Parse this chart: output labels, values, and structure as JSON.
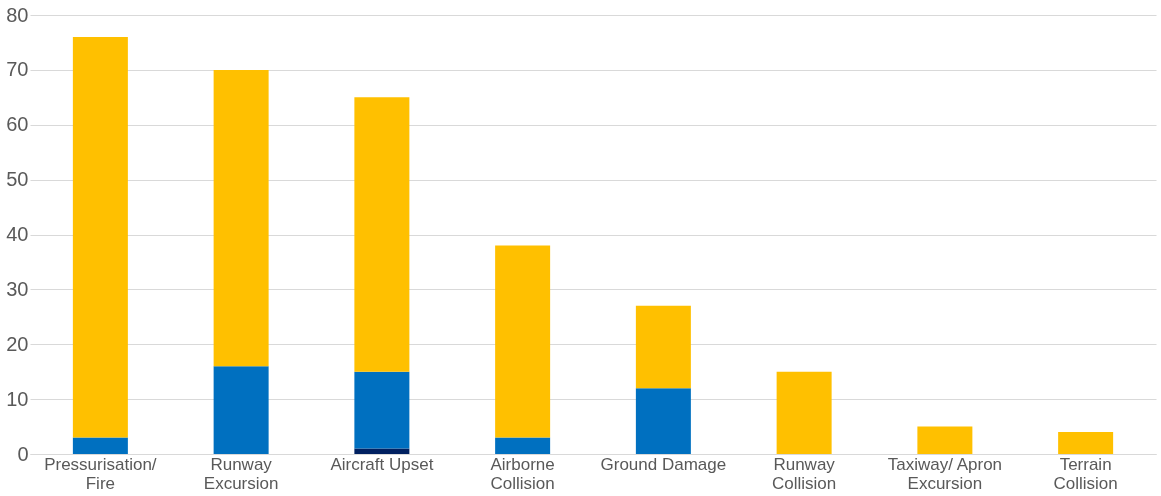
{
  "chart_data": {
    "type": "bar",
    "stacked": true,
    "categories": [
      "Pressurisation/ Fire",
      "Runway Excursion",
      "Aircraft Upset",
      "Airborne Collision",
      "Ground Damage",
      "Runway Collision",
      "Taxiway/ Apron Excursion",
      "Terrain Collision"
    ],
    "series": [
      {
        "color": "#002060",
        "values": [
          0,
          0,
          1,
          0,
          0,
          0,
          0,
          0
        ]
      },
      {
        "color": "#0070c0",
        "values": [
          3,
          16,
          14,
          3,
          12,
          0,
          0,
          0
        ]
      },
      {
        "color": "#ffc000",
        "values": [
          73,
          54,
          50,
          35,
          15,
          15,
          5,
          4
        ]
      }
    ],
    "ylim": [
      0,
      80
    ],
    "yticks": [
      0,
      10,
      20,
      30,
      40,
      50,
      60,
      70,
      80
    ],
    "grid": "y"
  }
}
